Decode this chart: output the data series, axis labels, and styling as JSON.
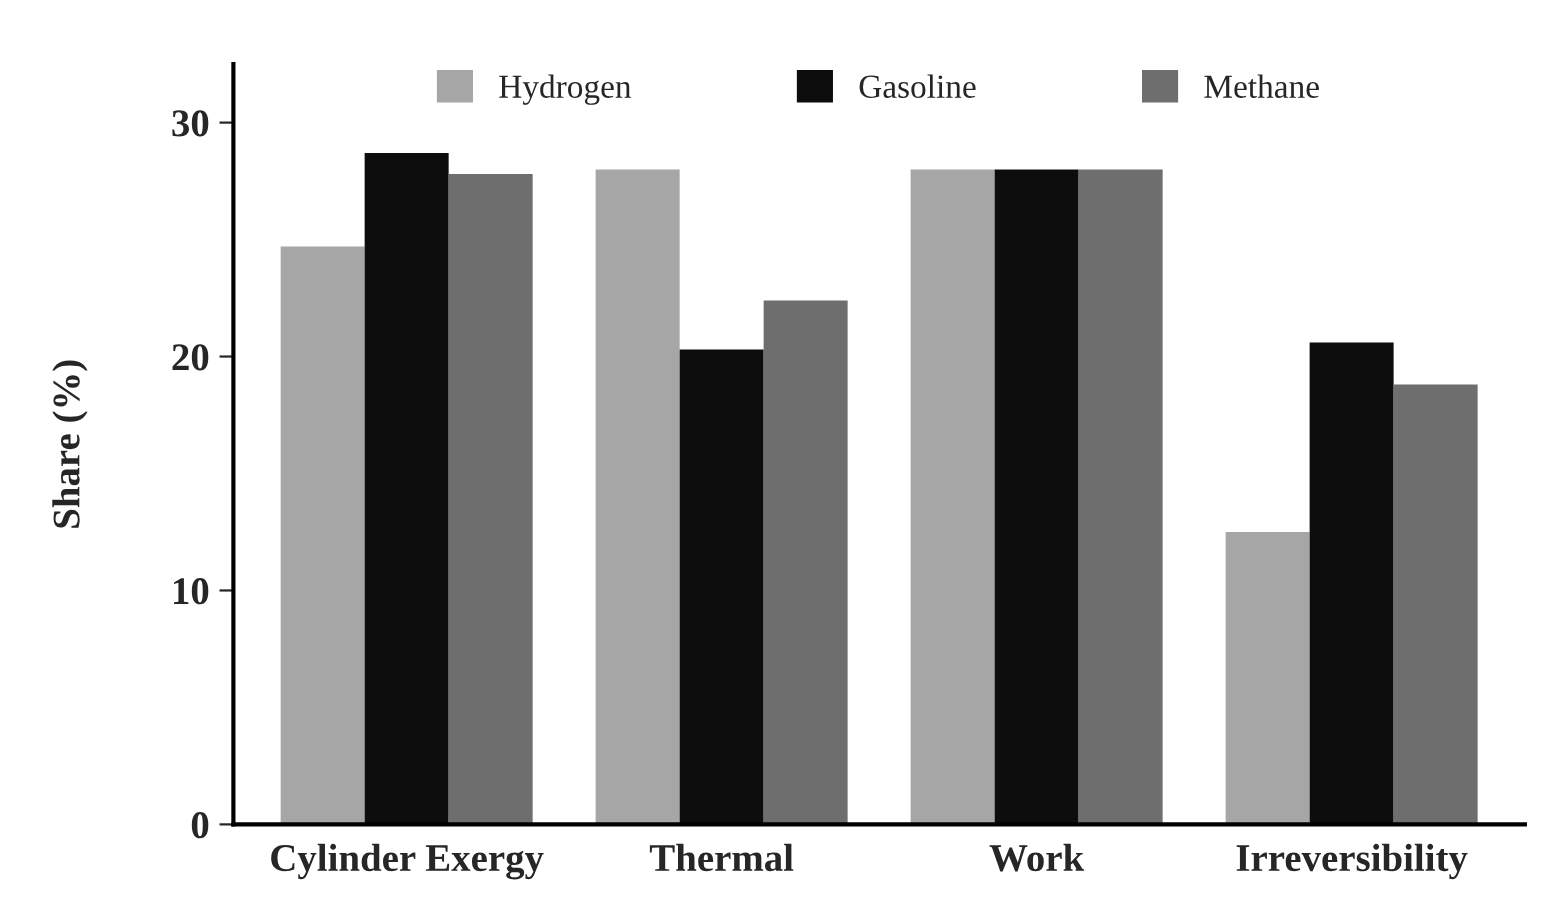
{
  "chart_data": {
    "type": "bar",
    "ylabel": "Share (%)",
    "categories": [
      "Cylinder Exergy",
      "Thermal",
      "Work",
      "Irreversibility"
    ],
    "series": [
      {
        "name": "Hydrogen",
        "color": "#a6a6a6",
        "values": [
          24.7,
          28.0,
          28.0,
          12.5
        ]
      },
      {
        "name": "Gasoline",
        "color": "#0d0d0d",
        "values": [
          28.7,
          20.3,
          28.0,
          20.6
        ]
      },
      {
        "name": "Methane",
        "color": "#6e6e6e",
        "values": [
          27.8,
          22.4,
          28.0,
          18.8
        ]
      }
    ],
    "ylim": [
      0,
      32.5
    ],
    "yticks": [
      0,
      10,
      20,
      30
    ],
    "grid": false,
    "legend": "top"
  }
}
